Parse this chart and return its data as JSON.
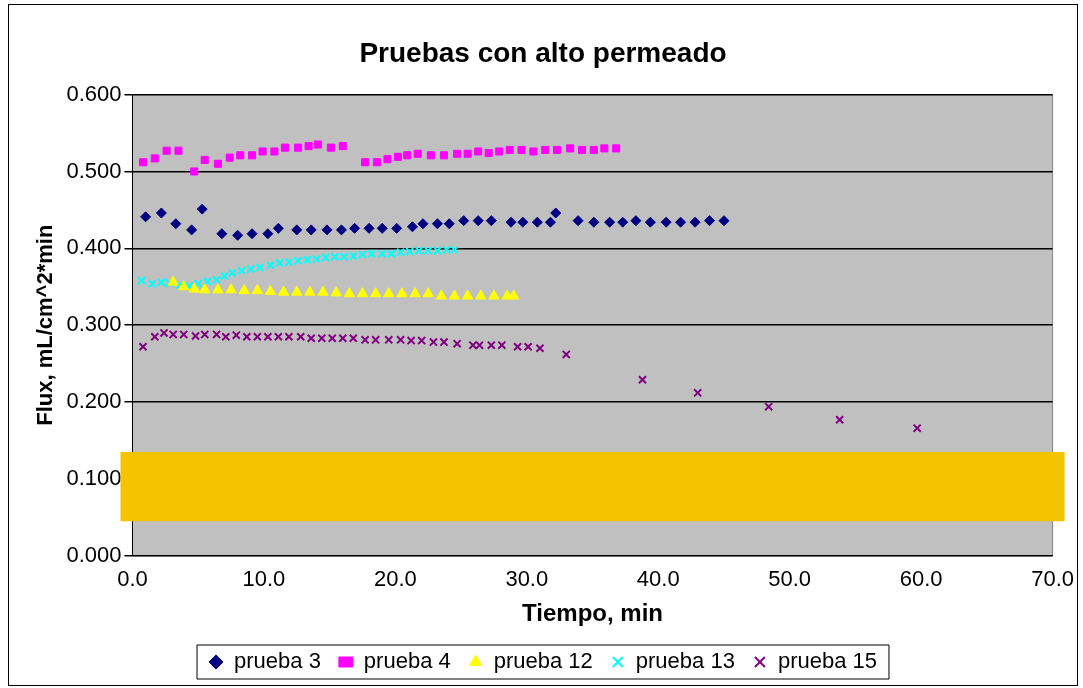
{
  "chart_data": {
    "type": "scatter",
    "title": "Pruebas con alto permeado",
    "xlabel": "Tiempo, min",
    "ylabel": "Flux, mL/cm^2*min",
    "xlim": [
      0,
      70
    ],
    "xticks": [
      {
        "value": 0,
        "label": "0.0"
      },
      {
        "value": 10,
        "label": "10.0"
      },
      {
        "value": 20,
        "label": "20.0"
      },
      {
        "value": 30,
        "label": "30.0"
      },
      {
        "value": 40,
        "label": "40.0"
      },
      {
        "value": 50,
        "label": "50.0"
      },
      {
        "value": 60,
        "label": "60.0"
      },
      {
        "value": 70,
        "label": "70.0"
      }
    ],
    "ylim": [
      0,
      0.6
    ],
    "yticks": [
      {
        "value": 0,
        "label": "0.000"
      },
      {
        "value": 0.1,
        "label": "0.100"
      },
      {
        "value": 0.2,
        "label": "0.200"
      },
      {
        "value": 0.3,
        "label": "0.300"
      },
      {
        "value": 0.4,
        "label": "0.400"
      },
      {
        "value": 0.5,
        "label": "0.500"
      },
      {
        "value": 0.6,
        "label": "0.600"
      }
    ],
    "grid": "y",
    "legend": "bottom",
    "bands": [
      {
        "axis": "y",
        "from": 0.045,
        "to": 0.135,
        "color": "#f5c400"
      }
    ],
    "series": [
      {
        "name": "prueba 3",
        "color": "#000080",
        "marker": "diamond",
        "x": [
          1.0,
          2.2,
          3.3,
          4.5,
          5.3,
          6.8,
          8.0,
          9.1,
          10.3,
          11.1,
          12.5,
          13.6,
          14.8,
          15.9,
          16.9,
          18.0,
          19.0,
          20.1,
          21.3,
          22.1,
          23.2,
          24.1,
          25.2,
          26.3,
          27.3,
          28.8,
          29.7,
          30.8,
          31.8,
          32.2,
          33.9,
          35.1,
          36.3,
          37.3,
          38.3,
          39.4,
          40.6,
          41.7,
          42.8,
          43.9,
          45.0
        ],
        "values": [
          0.441,
          0.446,
          0.432,
          0.424,
          0.451,
          0.419,
          0.417,
          0.419,
          0.419,
          0.426,
          0.424,
          0.424,
          0.424,
          0.424,
          0.426,
          0.426,
          0.426,
          0.426,
          0.428,
          0.432,
          0.432,
          0.432,
          0.436,
          0.436,
          0.436,
          0.434,
          0.434,
          0.434,
          0.434,
          0.446,
          0.436,
          0.434,
          0.434,
          0.434,
          0.436,
          0.434,
          0.434,
          0.434,
          0.434,
          0.436,
          0.436
        ]
      },
      {
        "name": "prueba 4",
        "color": "#ff00ff",
        "marker": "square",
        "x": [
          0.8,
          1.7,
          2.6,
          3.5,
          4.7,
          5.5,
          6.5,
          7.4,
          8.2,
          9.1,
          9.9,
          10.8,
          11.6,
          12.6,
          13.4,
          14.1,
          15.1,
          16.0,
          17.7,
          18.6,
          19.4,
          20.2,
          20.9,
          21.7,
          22.7,
          23.7,
          24.7,
          25.5,
          26.3,
          27.1,
          27.9,
          28.7,
          29.6,
          30.5,
          31.4,
          32.3,
          33.3,
          34.2,
          35.1,
          35.9,
          36.8
        ],
        "values": [
          0.512,
          0.517,
          0.527,
          0.527,
          0.5,
          0.515,
          0.51,
          0.518,
          0.521,
          0.521,
          0.526,
          0.526,
          0.531,
          0.531,
          0.533,
          0.535,
          0.531,
          0.533,
          0.512,
          0.512,
          0.516,
          0.519,
          0.521,
          0.523,
          0.521,
          0.521,
          0.523,
          0.523,
          0.526,
          0.524,
          0.526,
          0.528,
          0.528,
          0.526,
          0.528,
          0.528,
          0.53,
          0.528,
          0.528,
          0.53,
          0.53
        ]
      },
      {
        "name": "prueba 12",
        "color": "#ffff00",
        "marker": "triangle",
        "x": [
          3.1,
          3.9,
          4.7,
          5.5,
          6.5,
          7.5,
          8.5,
          9.5,
          10.5,
          11.5,
          12.5,
          13.5,
          14.5,
          15.5,
          16.5,
          17.5,
          18.5,
          19.5,
          20.5,
          21.5,
          22.5,
          23.5,
          24.5,
          25.5,
          26.5,
          27.5,
          28.5,
          29.0
        ],
        "values": [
          0.356,
          0.35,
          0.347,
          0.346,
          0.346,
          0.346,
          0.345,
          0.345,
          0.344,
          0.343,
          0.343,
          0.343,
          0.343,
          0.342,
          0.341,
          0.341,
          0.341,
          0.341,
          0.341,
          0.341,
          0.341,
          0.338,
          0.338,
          0.338,
          0.338,
          0.338,
          0.338,
          0.338
        ]
      },
      {
        "name": "prueba 13",
        "color": "#00ffff",
        "marker": "cross",
        "x": [
          0.7,
          1.5,
          2.2,
          2.8,
          3.6,
          4.3,
          5.0,
          5.7,
          6.4,
          7.0,
          7.6,
          8.3,
          9.0,
          9.7,
          10.5,
          11.2,
          11.9,
          12.6,
          13.3,
          14.0,
          14.7,
          15.4,
          16.1,
          16.8,
          17.5,
          18.2,
          19.0,
          19.7,
          20.4,
          21.1,
          21.8,
          22.5,
          23.2,
          23.9,
          24.5
        ],
        "values": [
          0.358,
          0.354,
          0.356,
          0.355,
          0.352,
          0.351,
          0.354,
          0.357,
          0.359,
          0.364,
          0.368,
          0.371,
          0.373,
          0.375,
          0.378,
          0.381,
          0.382,
          0.384,
          0.385,
          0.386,
          0.388,
          0.389,
          0.389,
          0.39,
          0.392,
          0.393,
          0.393,
          0.393,
          0.395,
          0.396,
          0.397,
          0.397,
          0.397,
          0.398,
          0.398
        ]
      },
      {
        "name": "prueba 15",
        "color": "#800080",
        "marker": "cross",
        "x": [
          0.8,
          1.7,
          2.4,
          3.1,
          3.9,
          4.8,
          5.5,
          6.4,
          7.1,
          7.9,
          8.7,
          9.5,
          10.3,
          11.1,
          11.9,
          12.8,
          13.6,
          14.4,
          15.2,
          16.0,
          16.8,
          17.7,
          18.5,
          19.5,
          20.4,
          21.2,
          22.0,
          22.9,
          23.7,
          24.7,
          25.9,
          26.4,
          27.3,
          28.1,
          29.3,
          30.1,
          31.0,
          33.0,
          38.8,
          43.0,
          48.4,
          53.8,
          59.7
        ],
        "values": [
          0.272,
          0.285,
          0.29,
          0.288,
          0.288,
          0.286,
          0.288,
          0.288,
          0.285,
          0.287,
          0.285,
          0.285,
          0.285,
          0.285,
          0.285,
          0.285,
          0.283,
          0.283,
          0.283,
          0.283,
          0.283,
          0.281,
          0.281,
          0.281,
          0.281,
          0.28,
          0.28,
          0.278,
          0.278,
          0.276,
          0.274,
          0.274,
          0.274,
          0.274,
          0.272,
          0.272,
          0.27,
          0.262,
          0.229,
          0.212,
          0.194,
          0.177,
          0.166
        ]
      }
    ]
  }
}
